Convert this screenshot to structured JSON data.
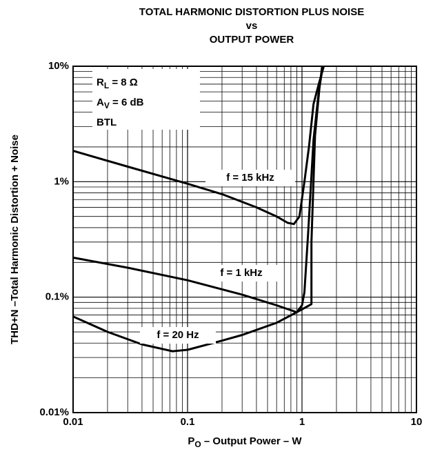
{
  "chart_data": {
    "type": "line",
    "title": [
      "TOTAL HARMONIC DISTORTION PLUS NOISE",
      "vs",
      "OUTPUT POWER"
    ],
    "xlabel": {
      "main": "P",
      "sub": "O",
      "rest": " – Output Power – W"
    },
    "ylabel": "THD+N –Total Harmonic Distortion + Noise",
    "xscale": "log",
    "yscale": "log",
    "xlim": [
      0.01,
      10
    ],
    "ylim": [
      0.01,
      10
    ],
    "xticks": [
      0.01,
      0.1,
      1,
      10
    ],
    "yticks": [
      {
        "value": 0.01,
        "label": "0.01%"
      },
      {
        "value": 0.1,
        "label": "0.1%"
      },
      {
        "value": 1,
        "label": "1%"
      },
      {
        "value": 10,
        "label": "10%"
      }
    ],
    "grid": true,
    "minor_grid": true,
    "annotation": [
      {
        "main": "R",
        "sub": "L",
        "rest": " = 8 Ω"
      },
      {
        "main": "A",
        "sub": "V",
        "rest": " = 6 dB"
      },
      {
        "main": "BTL"
      }
    ],
    "series": [
      {
        "name": "f = 15 kHz",
        "color": "#000000",
        "x": [
          0.01,
          0.03,
          0.1,
          0.2,
          0.4,
          0.6,
          0.75,
          0.85,
          0.95,
          1.05,
          1.15,
          1.26,
          1.4,
          1.55
        ],
        "values": [
          1.85,
          1.35,
          0.96,
          0.78,
          0.6,
          0.5,
          0.44,
          0.43,
          0.5,
          1.0,
          2.0,
          4.7,
          7.0,
          10
        ]
      },
      {
        "name": "f = 1 kHz",
        "color": "#000000",
        "x": [
          0.01,
          0.03,
          0.1,
          0.3,
          0.6,
          0.9,
          1.0,
          1.05,
          1.13,
          1.26,
          1.4,
          1.52
        ],
        "values": [
          0.22,
          0.18,
          0.14,
          0.105,
          0.085,
          0.074,
          0.085,
          0.11,
          0.35,
          2.3,
          6.0,
          10
        ]
      },
      {
        "name": "f = 20 Hz",
        "color": "#000000",
        "x": [
          0.01,
          0.02,
          0.04,
          0.074,
          0.1,
          0.2,
          0.3,
          0.6,
          0.9,
          1.21,
          1.21,
          1.3,
          1.42,
          1.5
        ],
        "values": [
          0.068,
          0.05,
          0.039,
          0.034,
          0.035,
          0.042,
          0.047,
          0.06,
          0.074,
          0.087,
          0.3,
          2.5,
          6.5,
          10
        ]
      }
    ]
  }
}
